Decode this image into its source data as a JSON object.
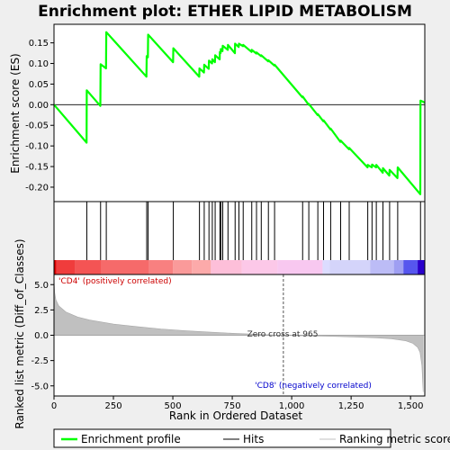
{
  "chart_data": {
    "type": "line",
    "title": "Enrichment plot: ETHER LIPID METABOLISM",
    "xlabel": "Rank in Ordered Dataset",
    "ylabel_top": "Enrichment score (ES)",
    "ylabel_bottom": "Ranked list metric (Diff_of_Classes)",
    "xlim": [
      0,
      1560
    ],
    "ylim_top": [
      -0.235,
      0.195
    ],
    "ylim_bottom": [
      -6,
      6
    ],
    "x_ticks": [
      0,
      250,
      500,
      750,
      1000,
      1250,
      1500
    ],
    "x_tick_labels": [
      "0",
      "250",
      "500",
      "750",
      "1,000",
      "1,250",
      "1,500"
    ],
    "y_ticks_top": [
      -0.2,
      -0.15,
      -0.1,
      -0.05,
      0.0,
      0.05,
      0.1,
      0.15
    ],
    "y_tick_labels_top": [
      "-0.20",
      "-0.15",
      "-0.10",
      "-0.05",
      "0.00",
      "0.05",
      "0.10",
      "0.15"
    ],
    "y_ticks_bottom": [
      -5,
      -2.5,
      0,
      2.5,
      5
    ],
    "y_tick_labels_bottom": [
      "-5.0",
      "-2.5",
      "0.0",
      "2.5",
      "5.0"
    ],
    "hits": [
      138,
      196,
      220,
      390,
      396,
      502,
      612,
      632,
      652,
      666,
      678,
      698,
      702,
      710,
      732,
      762,
      778,
      796,
      832,
      852,
      872,
      902,
      928,
      1046,
      1072,
      1110,
      1134,
      1164,
      1206,
      1242,
      1320,
      1338,
      1356,
      1384,
      1412,
      1446,
      1542
    ],
    "es_curve": [
      [
        0,
        0.0
      ],
      [
        137,
        -0.092
      ],
      [
        138,
        0.035
      ],
      [
        195,
        -0.003
      ],
      [
        196,
        0.098
      ],
      [
        219,
        0.088
      ],
      [
        220,
        0.176
      ],
      [
        389,
        0.068
      ],
      [
        390,
        0.118
      ],
      [
        395,
        0.115
      ],
      [
        396,
        0.17
      ],
      [
        501,
        0.103
      ],
      [
        502,
        0.137
      ],
      [
        611,
        0.068
      ],
      [
        612,
        0.088
      ],
      [
        631,
        0.078
      ],
      [
        632,
        0.097
      ],
      [
        651,
        0.087
      ],
      [
        652,
        0.107
      ],
      [
        665,
        0.1
      ],
      [
        666,
        0.11
      ],
      [
        677,
        0.103
      ],
      [
        678,
        0.12
      ],
      [
        697,
        0.11
      ],
      [
        698,
        0.128
      ],
      [
        701,
        0.125
      ],
      [
        702,
        0.135
      ],
      [
        709,
        0.13
      ],
      [
        710,
        0.143
      ],
      [
        731,
        0.133
      ],
      [
        732,
        0.145
      ],
      [
        761,
        0.125
      ],
      [
        762,
        0.148
      ],
      [
        777,
        0.14
      ],
      [
        778,
        0.148
      ],
      [
        795,
        0.142
      ],
      [
        796,
        0.145
      ],
      [
        831,
        0.128
      ],
      [
        832,
        0.133
      ],
      [
        851,
        0.124
      ],
      [
        852,
        0.127
      ],
      [
        871,
        0.118
      ],
      [
        872,
        0.12
      ],
      [
        901,
        0.105
      ],
      [
        902,
        0.108
      ],
      [
        927,
        0.095
      ],
      [
        928,
        0.097
      ],
      [
        1045,
        0.018
      ],
      [
        1046,
        0.02
      ],
      [
        1071,
        0.0
      ],
      [
        1072,
        0.002
      ],
      [
        1109,
        -0.025
      ],
      [
        1110,
        -0.023
      ],
      [
        1133,
        -0.04
      ],
      [
        1134,
        -0.038
      ],
      [
        1163,
        -0.06
      ],
      [
        1164,
        -0.058
      ],
      [
        1205,
        -0.09
      ],
      [
        1206,
        -0.087
      ],
      [
        1241,
        -0.108
      ],
      [
        1242,
        -0.105
      ],
      [
        1319,
        -0.152
      ],
      [
        1320,
        -0.146
      ],
      [
        1337,
        -0.152
      ],
      [
        1338,
        -0.145
      ],
      [
        1355,
        -0.152
      ],
      [
        1356,
        -0.146
      ],
      [
        1383,
        -0.165
      ],
      [
        1384,
        -0.154
      ],
      [
        1411,
        -0.172
      ],
      [
        1412,
        -0.158
      ],
      [
        1445,
        -0.178
      ],
      [
        1446,
        -0.152
      ],
      [
        1541,
        -0.217
      ],
      [
        1542,
        0.01
      ],
      [
        1560,
        0.005
      ]
    ],
    "metric_curve": [
      [
        0,
        5.6
      ],
      [
        3,
        4.2
      ],
      [
        8,
        3.5
      ],
      [
        20,
        2.9
      ],
      [
        50,
        2.3
      ],
      [
        100,
        1.8
      ],
      [
        150,
        1.5
      ],
      [
        250,
        1.1
      ],
      [
        350,
        0.85
      ],
      [
        450,
        0.62
      ],
      [
        550,
        0.45
      ],
      [
        650,
        0.32
      ],
      [
        750,
        0.2
      ],
      [
        850,
        0.1
      ],
      [
        965,
        0.0
      ],
      [
        1050,
        -0.05
      ],
      [
        1150,
        -0.1
      ],
      [
        1250,
        -0.16
      ],
      [
        1350,
        -0.25
      ],
      [
        1420,
        -0.35
      ],
      [
        1480,
        -0.55
      ],
      [
        1510,
        -0.8
      ],
      [
        1530,
        -1.2
      ],
      [
        1540,
        -1.7
      ],
      [
        1548,
        -3.0
      ],
      [
        1553,
        -5.6
      ]
    ],
    "zero_cross_rank": 965,
    "zero_cross_label": "Zero cross at 965",
    "pos_label": "'CD4' (positively correlated)",
    "neg_label": "'CD8' (negatively correlated)",
    "colors": {
      "curve": "#00ff00",
      "pos_text": "#cc0000",
      "neg_text": "#0000cc",
      "metric_fill": "#c0c0c0",
      "frame": "#000000"
    }
  },
  "legend": {
    "items": [
      {
        "label": "Enrichment profile",
        "color": "#00ff00",
        "style": "line-thick"
      },
      {
        "label": "Hits",
        "color": "#000000",
        "style": "line-thin"
      },
      {
        "label": "Ranking metric scores",
        "color": "#c0c0c0",
        "style": "line-thin"
      }
    ]
  }
}
